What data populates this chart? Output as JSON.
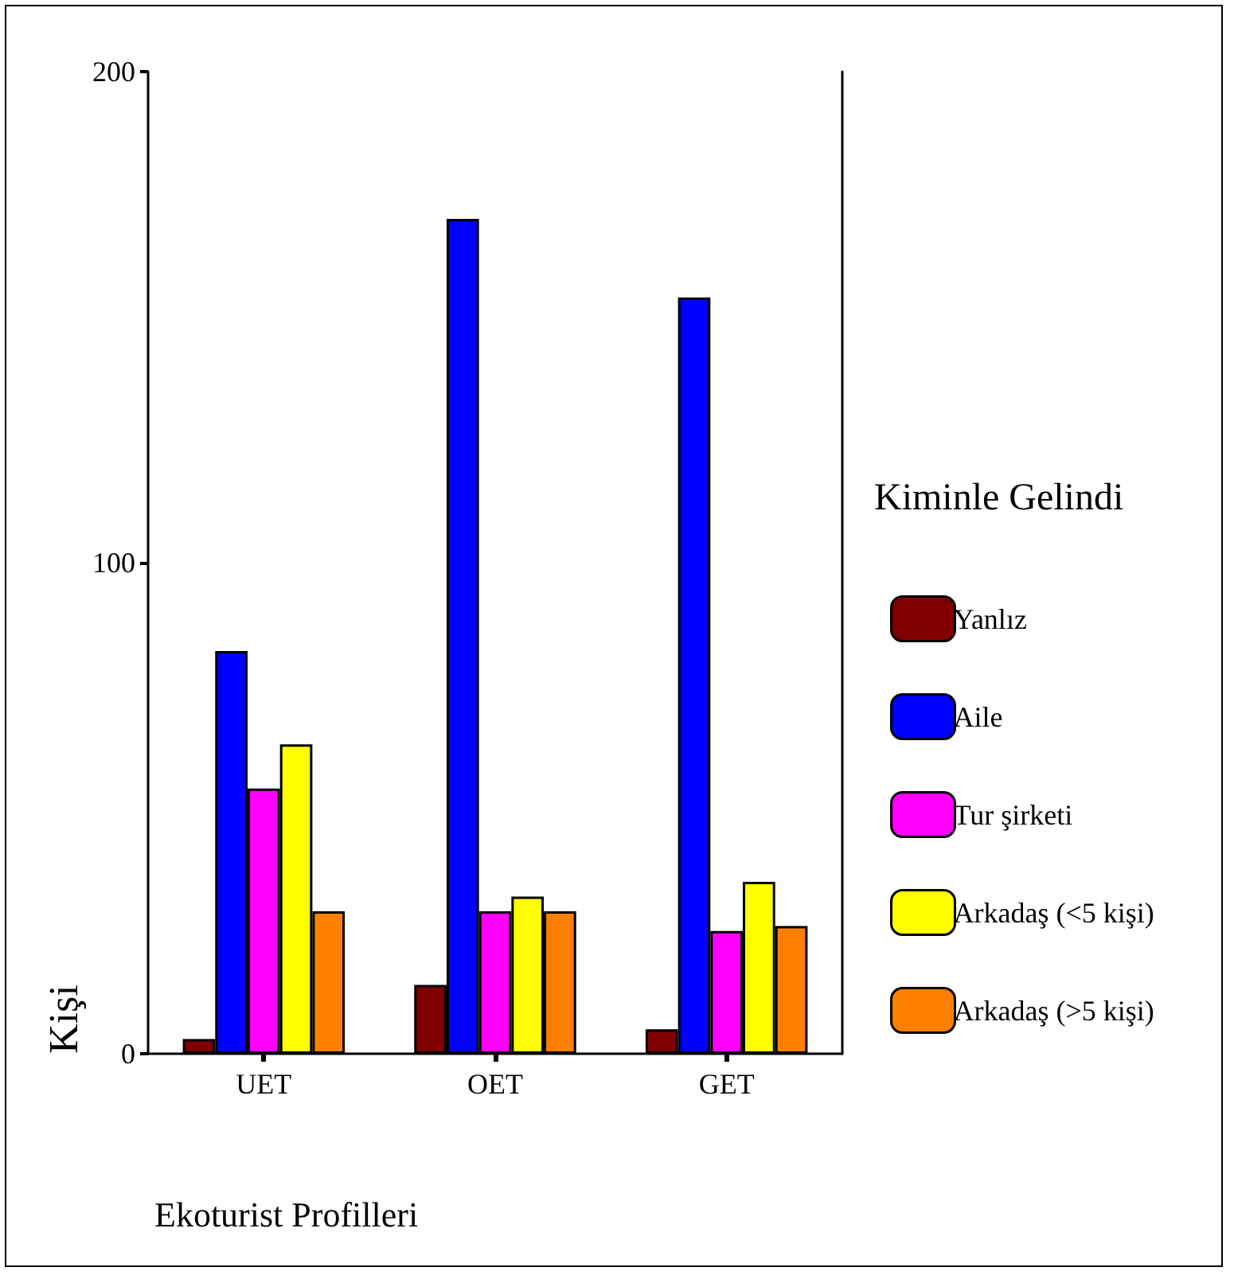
{
  "chart_data": {
    "type": "bar",
    "xlabel": "Ekoturist Profilleri",
    "ylabel": "Kişi",
    "legend_title": "Kiminle Gelindi",
    "categories": [
      "UET",
      "OET",
      "GET"
    ],
    "series": [
      {
        "name": "Yanlız",
        "color": "#800000",
        "values": [
          3,
          14,
          5
        ]
      },
      {
        "name": "Aile",
        "color": "#0000ff",
        "values": [
          82,
          170,
          154
        ]
      },
      {
        "name": "Tur şirketi",
        "color": "#ff00ff",
        "values": [
          54,
          29,
          25
        ]
      },
      {
        "name": "Arkadaş (<5 kişi)",
        "color": "#ffff00",
        "values": [
          63,
          32,
          35
        ]
      },
      {
        "name": "Arkadaş (>5 kişi)",
        "color": "#ff8000",
        "values": [
          29,
          29,
          26
        ]
      }
    ],
    "ylim": [
      0,
      200
    ],
    "yticks": [
      0,
      100,
      200
    ],
    "grid": false,
    "legend": "right"
  }
}
